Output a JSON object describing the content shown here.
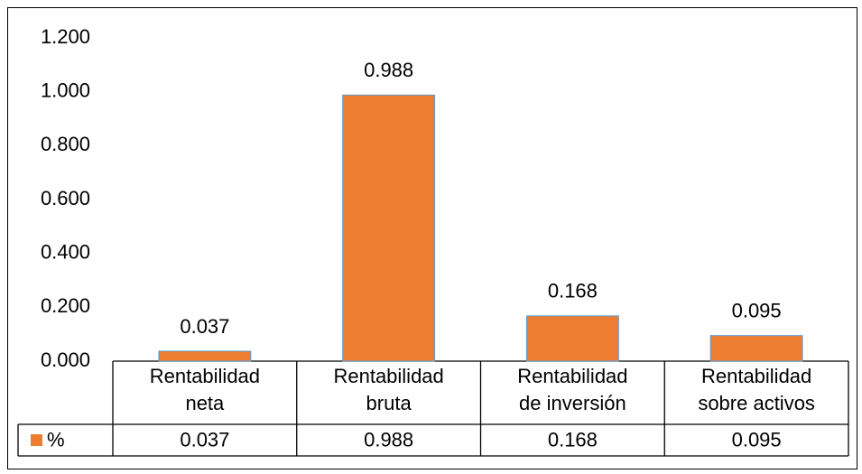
{
  "chart_data": {
    "type": "bar",
    "categories": [
      "Rentabilidad neta",
      "Rentabilidad bruta",
      "Rentabilidad de inversión",
      "Rentabilidad sobre activos"
    ],
    "series": [
      {
        "name": "%",
        "color": "#ed7d31",
        "values": [
          0.037,
          0.988,
          0.168,
          0.095
        ]
      }
    ],
    "ylim": [
      0,
      1.2
    ],
    "yticks": [
      {
        "value": 0,
        "label": "0.000"
      },
      {
        "value": 0.2,
        "label": "0.200"
      },
      {
        "value": 0.4,
        "label": "0.400"
      },
      {
        "value": 0.6,
        "label": "0.600"
      },
      {
        "value": 0.8,
        "label": "0.800"
      },
      {
        "value": 1,
        "label": "1.000"
      },
      {
        "value": 1.2,
        "label": "1.200"
      }
    ],
    "grid": false,
    "data_table": true
  }
}
